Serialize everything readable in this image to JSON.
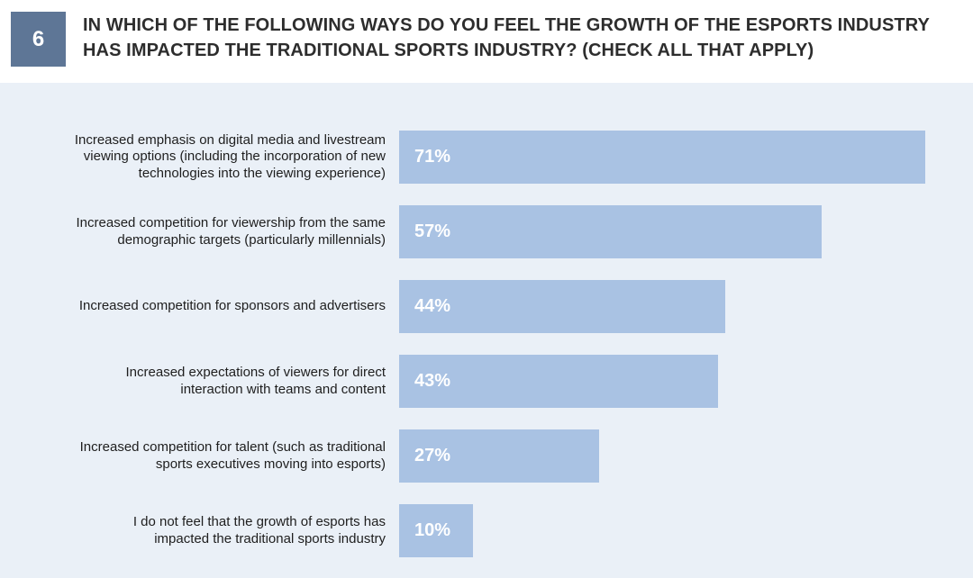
{
  "badge": "6",
  "title_lines": [
    "IN WHICH OF THE FOLLOWING WAYS DO YOU FEEL THE GROWTH OF THE ESPORTS INDUSTRY",
    "HAS IMPACTED THE TRADITIONAL SPORTS INDUSTRY? (CHECK ALL THAT APPLY)"
  ],
  "colors": {
    "badge": "#5e7696",
    "bar": "#a9c2e3",
    "panel": "#eaf0f7",
    "title": "#2d2d2d"
  },
  "chart_data": {
    "type": "bar",
    "orientation": "horizontal",
    "title": "IN WHICH OF THE FOLLOWING WAYS DO YOU FEEL THE GROWTH OF THE ESPORTS INDUSTRY HAS IMPACTED THE TRADITIONAL SPORTS INDUSTRY? (CHECK ALL THAT APPLY)",
    "xlim": [
      0,
      100
    ],
    "grid": false,
    "categories": [
      [
        "Increased emphasis on digital media and livestream",
        "viewing options (including the incorporation of new",
        "technologies into the viewing experience)"
      ],
      [
        "Increased competition for viewership from the same",
        "demographic targets (particularly millennials)"
      ],
      [
        "Increased competition for sponsors and advertisers"
      ],
      [
        "Increased expectations of viewers for direct",
        "interaction with teams and content"
      ],
      [
        "Increased competition for talent (such as traditional",
        "sports executives moving into esports)"
      ],
      [
        "I do not feel that the growth of esports has",
        "impacted the traditional sports industry"
      ]
    ],
    "values": [
      71,
      57,
      44,
      43,
      27,
      10
    ],
    "data_labels": [
      "71%",
      "57%",
      "44%",
      "43%",
      "27%",
      "10%"
    ]
  }
}
